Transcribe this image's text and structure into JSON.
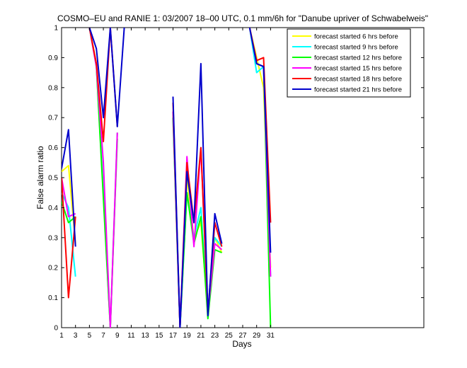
{
  "chart_data": {
    "type": "line",
    "title": "COSMO–EU and RANIE 1: 03/2007 18–00 UTC, 0.1 mm/6h for \"Danube upriver of Schwabelweis\"",
    "xlabel": "Days",
    "ylabel": "False alarm ratio",
    "xlim": [
      1,
      53
    ],
    "ylim": [
      0,
      1
    ],
    "xticks": [
      1,
      3,
      5,
      7,
      9,
      11,
      13,
      15,
      17,
      19,
      21,
      23,
      25,
      27,
      29,
      31
    ],
    "yticks": [
      0,
      0.1,
      0.2,
      0.3,
      0.4,
      0.5,
      0.6,
      0.7,
      0.8,
      0.9,
      1
    ],
    "ytick_labels": [
      "0",
      "0.1",
      "0.2",
      "0.3",
      "0.4",
      "0.5",
      "0.6",
      "0.7",
      "0.8",
      "0.9",
      "1"
    ],
    "grid": false,
    "legend_position": "top-right",
    "x": [
      1,
      2,
      3,
      4,
      5,
      6,
      7,
      8,
      9,
      10,
      11,
      12,
      13,
      14,
      15,
      16,
      17,
      18,
      19,
      20,
      21,
      22,
      23,
      24,
      25,
      26,
      27,
      28,
      29,
      30,
      31
    ],
    "series": [
      {
        "name": "forecast started 6 hrs before",
        "color": "#ffff00",
        "values": [
          0.52,
          0.54,
          0.28,
          null,
          1.0,
          0.88,
          0.45,
          0.0,
          0.65,
          null,
          null,
          null,
          null,
          null,
          null,
          null,
          0.72,
          0.0,
          0.5,
          0.3,
          0.35,
          0.05,
          0.3,
          0.25,
          null,
          null,
          null,
          1.0,
          0.9,
          0.8,
          0.2
        ]
      },
      {
        "name": "forecast started 9 hrs before",
        "color": "#00ffff",
        "values": [
          0.45,
          0.4,
          0.17,
          null,
          1.0,
          0.87,
          0.45,
          0.0,
          0.65,
          null,
          null,
          null,
          null,
          null,
          null,
          null,
          0.7,
          0.0,
          0.45,
          0.3,
          0.4,
          0.05,
          0.3,
          0.27,
          null,
          null,
          null,
          1.0,
          0.85,
          0.87,
          0.17
        ]
      },
      {
        "name": "forecast started 12 hrs before",
        "color": "#00ff00",
        "values": [
          0.42,
          0.35,
          0.37,
          null,
          1.0,
          0.87,
          0.43,
          0.0,
          0.63,
          null,
          null,
          null,
          null,
          null,
          null,
          null,
          0.7,
          0.0,
          0.45,
          0.28,
          0.37,
          0.03,
          0.26,
          0.25,
          null,
          null,
          null,
          1.0,
          0.88,
          0.87,
          0.0
        ]
      },
      {
        "name": "forecast started 15 hrs before",
        "color": "#ff00ff",
        "values": [
          0.5,
          0.37,
          0.38,
          null,
          1.0,
          0.87,
          0.55,
          0.0,
          0.65,
          null,
          null,
          null,
          null,
          null,
          null,
          null,
          0.72,
          0.0,
          0.57,
          0.27,
          0.6,
          0.05,
          0.28,
          0.26,
          null,
          null,
          null,
          1.0,
          0.88,
          0.87,
          0.17
        ]
      },
      {
        "name": "forecast started 18 hrs before",
        "color": "#ff0000",
        "values": [
          0.5,
          0.1,
          0.37,
          null,
          1.0,
          0.88,
          0.62,
          1.0,
          0.67,
          null,
          null,
          null,
          null,
          null,
          null,
          null,
          0.75,
          0.0,
          0.55,
          0.35,
          0.6,
          0.05,
          0.35,
          0.27,
          null,
          null,
          null,
          1.0,
          0.89,
          0.9,
          0.35
        ]
      },
      {
        "name": "forecast started 21 hrs before",
        "color": "#0000cc",
        "values": [
          0.53,
          0.66,
          0.27,
          null,
          1.0,
          0.93,
          0.7,
          1.0,
          0.67,
          1.0,
          null,
          null,
          null,
          null,
          null,
          null,
          0.77,
          0.0,
          0.52,
          0.35,
          0.88,
          0.04,
          0.38,
          0.28,
          null,
          null,
          null,
          1.0,
          0.88,
          0.87,
          0.25
        ]
      }
    ]
  }
}
